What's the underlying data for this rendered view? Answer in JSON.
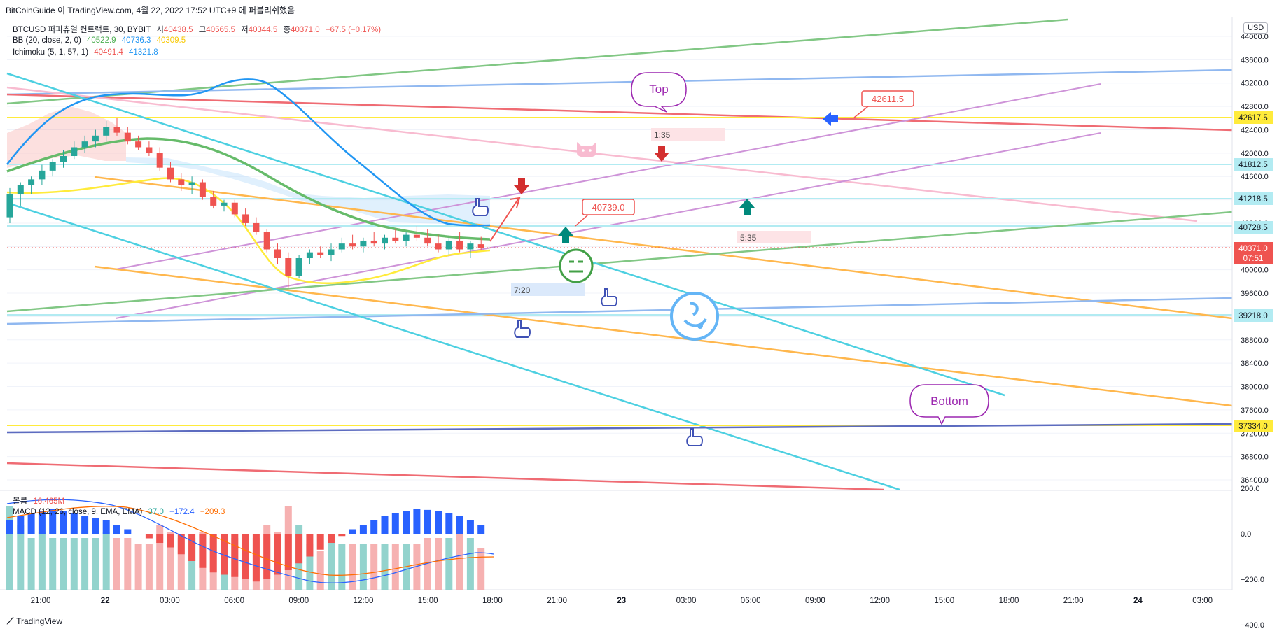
{
  "header": {
    "publisher_line": "BitCoinGuide 이 TradingView.com, 4월 22, 2022 17:52 UTC+9 에 퍼블리쉬했음"
  },
  "legend": {
    "symbol_line": "BTCUSD 퍼피츄얼 컨트랙트, 30, BYBIT",
    "open_label": "시",
    "open": "40438.5",
    "high_label": "고",
    "high": "40565.5",
    "low_label": "저",
    "low": "40344.5",
    "close_label": "종",
    "close": "40371.0",
    "change": "−67.5 (−0.17%)",
    "bb_label": "BB (20, close, 2, 0)",
    "bb_basis": "40522.9",
    "bb_upper": "40736.3",
    "bb_lower": "40309.5",
    "ichimoku_label": "Ichimoku (5, 1, 57, 1)",
    "ichimoku_a": "40491.4",
    "ichimoku_b": "41321.8",
    "volume_label": "볼륨",
    "volume_value": "16.465M",
    "macd_label": "MACD (12, 26, close, 9, EMA, EMA)",
    "macd_hist": "37.0",
    "macd_line": "−172.4",
    "macd_signal": "−209.3"
  },
  "currency_badge": "USD",
  "annotations": {
    "top_bubble": "Top",
    "bottom_bubble": "Bottom",
    "callout_42611": "42611.5",
    "callout_40739": "40739.0",
    "timer_1": "1:35",
    "timer_2": "5:35",
    "timer_3": "7:20"
  },
  "price_badges": {
    "b42617": "42617.5",
    "b41812": "41812.5",
    "b41218": "41218.5",
    "b40728": "40728.5",
    "b40371": "40371.0",
    "countdown": "07:51",
    "b39218": "39218.0",
    "b37334": "37334.0"
  },
  "footer": {
    "brand": "TradingView"
  },
  "colors": {
    "up": "#26a69a",
    "down": "#ef5350",
    "bb_basis": "#4caf50",
    "bb_upper": "#2196f3",
    "bb_lower": "#ffeb3b",
    "teal_line": "#4dd0e1",
    "orange_line": "#ffa726",
    "violet_line": "#ce93d8"
  },
  "chart_data": [
    {
      "type": "line",
      "title": "BTCUSD 퍼피츄얼 컨트랙트, 30, BYBIT",
      "x_tick_labels": [
        "21:00",
        "22",
        "03:00",
        "06:00",
        "09:00",
        "12:00",
        "15:00",
        "18:00",
        "21:00",
        "23",
        "03:00",
        "06:00",
        "09:00",
        "12:00",
        "15:00",
        "18:00",
        "21:00",
        "24",
        "03:00"
      ],
      "y_tick_labels": [
        "44000.0",
        "43600.0",
        "43200.0",
        "42800.0",
        "42400.0",
        "42000.0",
        "41600.0",
        "41200.0",
        "40800.0",
        "40400.0",
        "40000.0",
        "39600.0",
        "39200.0",
        "38800.0",
        "38400.0",
        "38000.0",
        "37600.0",
        "37200.0",
        "36800.0",
        "36400.0"
      ],
      "ylim": [
        36200,
        44200
      ],
      "last_close": 40371.0,
      "candles_approx": [
        {
          "o": 40900,
          "h": 41400,
          "l": 40800,
          "c": 41300
        },
        {
          "o": 41300,
          "h": 41500,
          "l": 41100,
          "c": 41450
        },
        {
          "o": 41450,
          "h": 41600,
          "l": 41300,
          "c": 41550
        },
        {
          "o": 41550,
          "h": 41800,
          "l": 41450,
          "c": 41700
        },
        {
          "o": 41700,
          "h": 41900,
          "l": 41600,
          "c": 41850
        },
        {
          "o": 41850,
          "h": 42050,
          "l": 41750,
          "c": 41950
        },
        {
          "o": 41950,
          "h": 42200,
          "l": 41900,
          "c": 42100
        },
        {
          "o": 42100,
          "h": 42300,
          "l": 42000,
          "c": 42200
        },
        {
          "o": 42200,
          "h": 42400,
          "l": 42100,
          "c": 42300
        },
        {
          "o": 42300,
          "h": 42550,
          "l": 42200,
          "c": 42450
        },
        {
          "o": 42450,
          "h": 42600,
          "l": 42300,
          "c": 42350
        },
        {
          "o": 42350,
          "h": 42450,
          "l": 42150,
          "c": 42200
        },
        {
          "o": 42200,
          "h": 42300,
          "l": 42050,
          "c": 42100
        },
        {
          "o": 42100,
          "h": 42200,
          "l": 41950,
          "c": 42000
        },
        {
          "o": 42000,
          "h": 42100,
          "l": 41700,
          "c": 41750
        },
        {
          "o": 41750,
          "h": 41850,
          "l": 41500,
          "c": 41550
        },
        {
          "o": 41550,
          "h": 41650,
          "l": 41350,
          "c": 41450
        },
        {
          "o": 41450,
          "h": 41600,
          "l": 41300,
          "c": 41500
        },
        {
          "o": 41500,
          "h": 41550,
          "l": 41200,
          "c": 41250
        },
        {
          "o": 41250,
          "h": 41350,
          "l": 41050,
          "c": 41100
        },
        {
          "o": 41100,
          "h": 41200,
          "l": 41000,
          "c": 41150
        },
        {
          "o": 41150,
          "h": 41200,
          "l": 40900,
          "c": 40950
        },
        {
          "o": 40950,
          "h": 41050,
          "l": 40750,
          "c": 40800
        },
        {
          "o": 40800,
          "h": 40900,
          "l": 40600,
          "c": 40650
        },
        {
          "o": 40650,
          "h": 40700,
          "l": 40300,
          "c": 40350
        },
        {
          "o": 40350,
          "h": 40450,
          "l": 40100,
          "c": 40200
        },
        {
          "o": 40200,
          "h": 40300,
          "l": 39700,
          "c": 39900
        },
        {
          "o": 39900,
          "h": 40250,
          "l": 39850,
          "c": 40200
        },
        {
          "o": 40200,
          "h": 40350,
          "l": 40100,
          "c": 40300
        },
        {
          "o": 40300,
          "h": 40400,
          "l": 40200,
          "c": 40250
        },
        {
          "o": 40250,
          "h": 40450,
          "l": 40150,
          "c": 40350
        },
        {
          "o": 40350,
          "h": 40550,
          "l": 40300,
          "c": 40450
        },
        {
          "o": 40450,
          "h": 40600,
          "l": 40350,
          "c": 40400
        },
        {
          "o": 40400,
          "h": 40550,
          "l": 40300,
          "c": 40500
        },
        {
          "o": 40500,
          "h": 40650,
          "l": 40400,
          "c": 40450
        },
        {
          "o": 40450,
          "h": 40600,
          "l": 40350,
          "c": 40550
        },
        {
          "o": 40550,
          "h": 40700,
          "l": 40450,
          "c": 40500
        },
        {
          "o": 40500,
          "h": 40650,
          "l": 40400,
          "c": 40600
        },
        {
          "o": 40600,
          "h": 40750,
          "l": 40500,
          "c": 40550
        },
        {
          "o": 40550,
          "h": 40700,
          "l": 40400,
          "c": 40450
        },
        {
          "o": 40450,
          "h": 40600,
          "l": 40300,
          "c": 40350
        },
        {
          "o": 40350,
          "h": 40550,
          "l": 40250,
          "c": 40500
        },
        {
          "o": 40500,
          "h": 40650,
          "l": 40300,
          "c": 40350
        },
        {
          "o": 40350,
          "h": 40500,
          "l": 40200,
          "c": 40450
        },
        {
          "o": 40438.5,
          "h": 40565.5,
          "l": 40344.5,
          "c": 40371.0
        }
      ]
    },
    {
      "type": "bar",
      "title": "볼륨",
      "latest": "16.465M"
    },
    {
      "type": "bar",
      "title": "MACD (12, 26, close, 9, EMA, EMA)",
      "y_tick_labels": [
        "200.0",
        "0.0",
        "−200.0",
        "−400.0"
      ],
      "ylim": [
        -500,
        300
      ],
      "histogram_approx": [
        60,
        80,
        90,
        100,
        110,
        100,
        90,
        80,
        70,
        60,
        40,
        20,
        0,
        -20,
        -40,
        -60,
        -90,
        -120,
        -150,
        -170,
        -180,
        -190,
        -200,
        -210,
        -200,
        -180,
        -160,
        -130,
        -100,
        -70,
        -40,
        -10,
        20,
        40,
        60,
        80,
        90,
        100,
        110,
        105,
        100,
        90,
        80,
        60,
        37
      ]
    }
  ]
}
